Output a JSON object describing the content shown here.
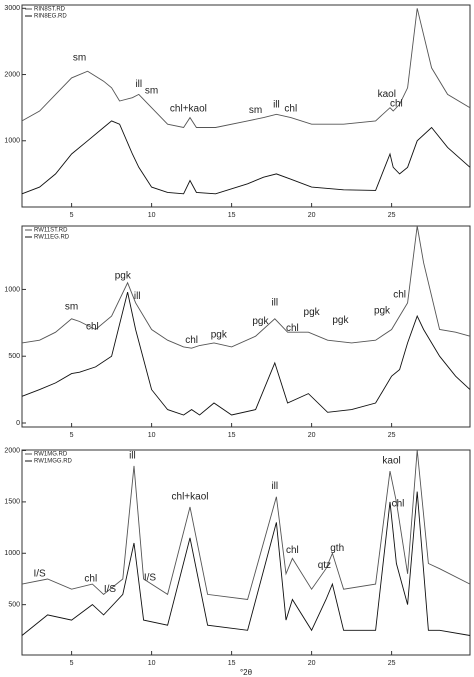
{
  "chart_data": [
    {
      "type": "line",
      "x": [
        1.9,
        3,
        4,
        5,
        6,
        7,
        7.5,
        8,
        8.8,
        9.2,
        10,
        11,
        12,
        12.4,
        12.8,
        14,
        16,
        17,
        17.8,
        18.7,
        20,
        22,
        24,
        24.9,
        25.1,
        25.5,
        26,
        26.6,
        27.5,
        28.5,
        29.9
      ],
      "series": [
        {
          "name": "RIN8ST.RD",
          "color": "#555555",
          "values": [
            1300,
            1450,
            1700,
            1950,
            2050,
            1900,
            1800,
            1600,
            1650,
            1700,
            1500,
            1250,
            1200,
            1350,
            1200,
            1200,
            1300,
            1350,
            1400,
            1350,
            1250,
            1250,
            1300,
            1500,
            1450,
            1550,
            1800,
            3000,
            2100,
            1700,
            1500
          ]
        },
        {
          "name": "RIN8EG.RD",
          "color": "#111111",
          "values": [
            200,
            300,
            500,
            800,
            1000,
            1200,
            1300,
            1250,
            800,
            600,
            300,
            220,
            200,
            400,
            220,
            200,
            350,
            450,
            500,
            420,
            300,
            260,
            250,
            800,
            600,
            500,
            600,
            1000,
            1200,
            900,
            600
          ]
        }
      ],
      "xlim": [
        1.9,
        29.9
      ],
      "xticks": [
        5,
        10,
        15,
        20,
        25
      ],
      "ylim": [
        0,
        3050
      ],
      "yticks": [
        1000,
        2000,
        3000
      ],
      "legend": "upper-left",
      "annotations": [
        {
          "text": "sm",
          "x": 5.5,
          "y": 2250
        },
        {
          "text": "ill",
          "x": 9.2,
          "y": 1850
        },
        {
          "text": "sm",
          "x": 10,
          "y": 1750
        },
        {
          "text": "chl+kaol",
          "x": 12.3,
          "y": 1480
        },
        {
          "text": "sm",
          "x": 16.5,
          "y": 1460
        },
        {
          "text": "ill",
          "x": 17.8,
          "y": 1540
        },
        {
          "text": "chl",
          "x": 18.7,
          "y": 1480
        },
        {
          "text": "kaol",
          "x": 24.7,
          "y": 1700
        },
        {
          "text": "chl",
          "x": 25.3,
          "y": 1560
        }
      ]
    },
    {
      "type": "line",
      "x": [
        1.9,
        3,
        4,
        5,
        5.5,
        6.5,
        7.5,
        8.5,
        9,
        10,
        11,
        12,
        12.5,
        13,
        13.9,
        15,
        16.5,
        17.7,
        18.5,
        19.8,
        21,
        22.5,
        24,
        25,
        25.5,
        26,
        26.6,
        27,
        28,
        29,
        29.9
      ],
      "series": [
        {
          "name": "RW11ST.RD",
          "color": "#555555",
          "values": [
            600,
            620,
            680,
            780,
            760,
            700,
            800,
            1050,
            900,
            700,
            620,
            570,
            560,
            580,
            600,
            570,
            650,
            780,
            680,
            680,
            620,
            600,
            620,
            700,
            800,
            900,
            1475,
            1200,
            700,
            680,
            650
          ]
        },
        {
          "name": "RW11EG.RD",
          "color": "#111111",
          "values": [
            200,
            250,
            300,
            370,
            380,
            420,
            500,
            980,
            700,
            250,
            100,
            60,
            100,
            60,
            150,
            60,
            100,
            450,
            150,
            220,
            80,
            100,
            150,
            350,
            400,
            600,
            800,
            700,
            500,
            350,
            250
          ]
        }
      ],
      "xlim": [
        1.9,
        29.9
      ],
      "xticks": [
        5,
        10,
        15,
        20,
        25
      ],
      "ylim": [
        -30,
        1475
      ],
      "yticks": [
        0,
        500,
        1000
      ],
      "legend": "upper-left",
      "annotations": [
        {
          "text": "sm",
          "x": 5,
          "y": 870
        },
        {
          "text": "chl",
          "x": 6.3,
          "y": 720
        },
        {
          "text": "pgk",
          "x": 8.2,
          "y": 1100
        },
        {
          "text": "ill",
          "x": 9.1,
          "y": 950
        },
        {
          "text": "chl",
          "x": 12.5,
          "y": 620
        },
        {
          "text": "pgk",
          "x": 14.2,
          "y": 660
        },
        {
          "text": "pgk",
          "x": 16.8,
          "y": 760
        },
        {
          "text": "ill",
          "x": 17.7,
          "y": 900
        },
        {
          "text": "chl",
          "x": 18.8,
          "y": 710
        },
        {
          "text": "pgk",
          "x": 20,
          "y": 830
        },
        {
          "text": "pgk",
          "x": 21.8,
          "y": 770
        },
        {
          "text": "pgk",
          "x": 24.4,
          "y": 840
        },
        {
          "text": "chl",
          "x": 25.5,
          "y": 960
        }
      ]
    },
    {
      "type": "line",
      "x": [
        1.9,
        3.5,
        5,
        6.3,
        7,
        8.2,
        8.9,
        9.5,
        11,
        12.4,
        13.5,
        16,
        17.8,
        18.4,
        18.8,
        20,
        20.9,
        21.3,
        22,
        24,
        24.9,
        25.3,
        26,
        26.6,
        27.3,
        28,
        29.9
      ],
      "series": [
        {
          "name": "RW1MG.RD",
          "color": "#555555",
          "values": [
            700,
            750,
            650,
            700,
            600,
            750,
            1850,
            750,
            600,
            1450,
            600,
            550,
            1550,
            800,
            950,
            650,
            850,
            1000,
            650,
            700,
            1800,
            1500,
            800,
            2005,
            900,
            850,
            700
          ]
        },
        {
          "name": "RW1MGG.RD",
          "color": "#111111",
          "values": [
            200,
            400,
            350,
            500,
            400,
            600,
            1100,
            350,
            300,
            1150,
            300,
            250,
            1300,
            350,
            550,
            250,
            550,
            700,
            250,
            250,
            1500,
            900,
            500,
            1600,
            250,
            250,
            200
          ]
        }
      ],
      "xlim": [
        1.9,
        29.9
      ],
      "xticks": [
        5,
        10,
        15,
        20,
        25
      ],
      "ylim": [
        10,
        2005
      ],
      "yticks": [
        500,
        1000,
        1500,
        2000
      ],
      "legend": "upper-left",
      "xlabel": "°2θ",
      "annotations": [
        {
          "text": "I/S",
          "x": 3,
          "y": 800
        },
        {
          "text": "chl",
          "x": 6.2,
          "y": 750
        },
        {
          "text": "I/S",
          "x": 7.4,
          "y": 650
        },
        {
          "text": "ill",
          "x": 8.8,
          "y": 1950
        },
        {
          "text": "I/S",
          "x": 9.9,
          "y": 760
        },
        {
          "text": "chl+kaol",
          "x": 12.4,
          "y": 1550
        },
        {
          "text": "ill",
          "x": 17.7,
          "y": 1650
        },
        {
          "text": "chl",
          "x": 18.8,
          "y": 1030
        },
        {
          "text": "qtz",
          "x": 20.8,
          "y": 880
        },
        {
          "text": "gth",
          "x": 21.6,
          "y": 1050
        },
        {
          "text": "kaol",
          "x": 25,
          "y": 1900
        },
        {
          "text": "chl",
          "x": 25.4,
          "y": 1480
        }
      ]
    }
  ]
}
